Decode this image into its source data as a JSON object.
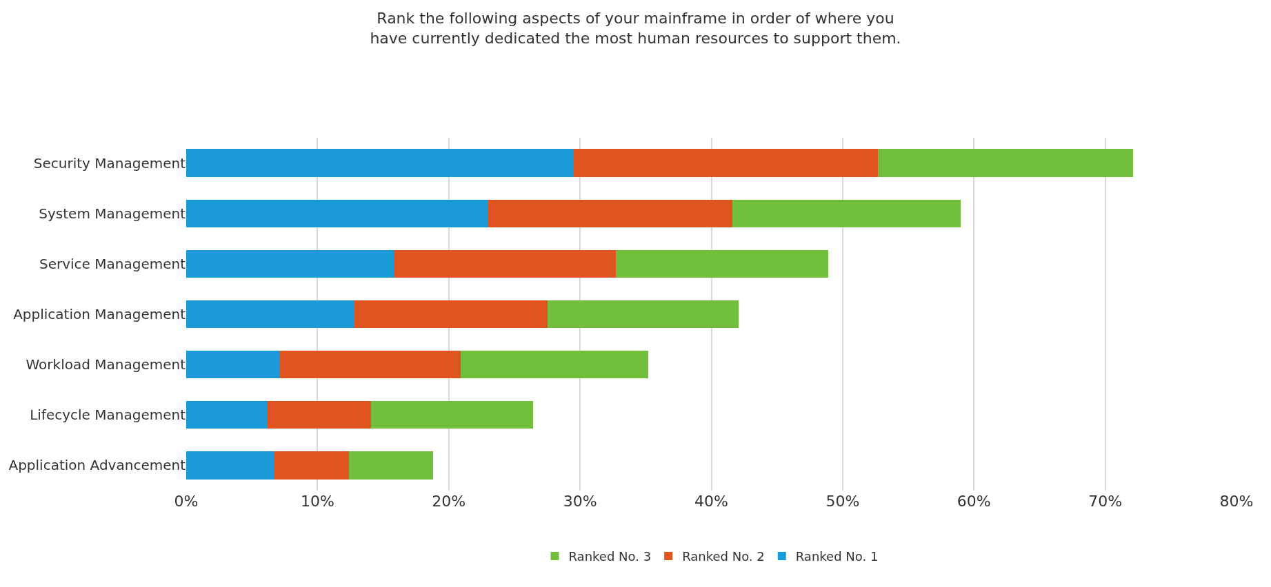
{
  "chart_data": {
    "type": "bar",
    "orientation": "horizontal",
    "stacked": true,
    "title": "Rank the following aspects of your mainframe in order of where you\nhave currently dedicated the most human resources to support them.",
    "categories": [
      "Security Management",
      "System Management",
      "Service Management",
      "Application Management",
      "Workload Management",
      "Lifecycle Management",
      "Application Advancement"
    ],
    "series": [
      {
        "name": "Ranked No. 1",
        "color": "#1a9ad9",
        "values": [
          29.5,
          23.0,
          15.8,
          12.8,
          7.1,
          6.2,
          6.7
        ]
      },
      {
        "name": "Ranked No. 2",
        "color": "#e0541f",
        "values": [
          23.2,
          18.6,
          16.9,
          14.7,
          13.8,
          7.9,
          5.7
        ]
      },
      {
        "name": "Ranked No. 3",
        "color": "#72bf3c",
        "values": [
          19.4,
          17.4,
          16.2,
          14.6,
          14.3,
          12.3,
          6.4
        ]
      }
    ],
    "xlim": [
      0,
      80
    ],
    "xticks": [
      {
        "value": 0,
        "label": "0%"
      },
      {
        "value": 10,
        "label": "10%"
      },
      {
        "value": 20,
        "label": "20%"
      },
      {
        "value": 30,
        "label": "30%"
      },
      {
        "value": 40,
        "label": "40%"
      },
      {
        "value": 50,
        "label": "50%"
      },
      {
        "value": 60,
        "label": "60%"
      },
      {
        "value": 70,
        "label": "70%"
      },
      {
        "value": 80,
        "label": "80%"
      }
    ],
    "grid": "x",
    "legend": "bottom"
  }
}
